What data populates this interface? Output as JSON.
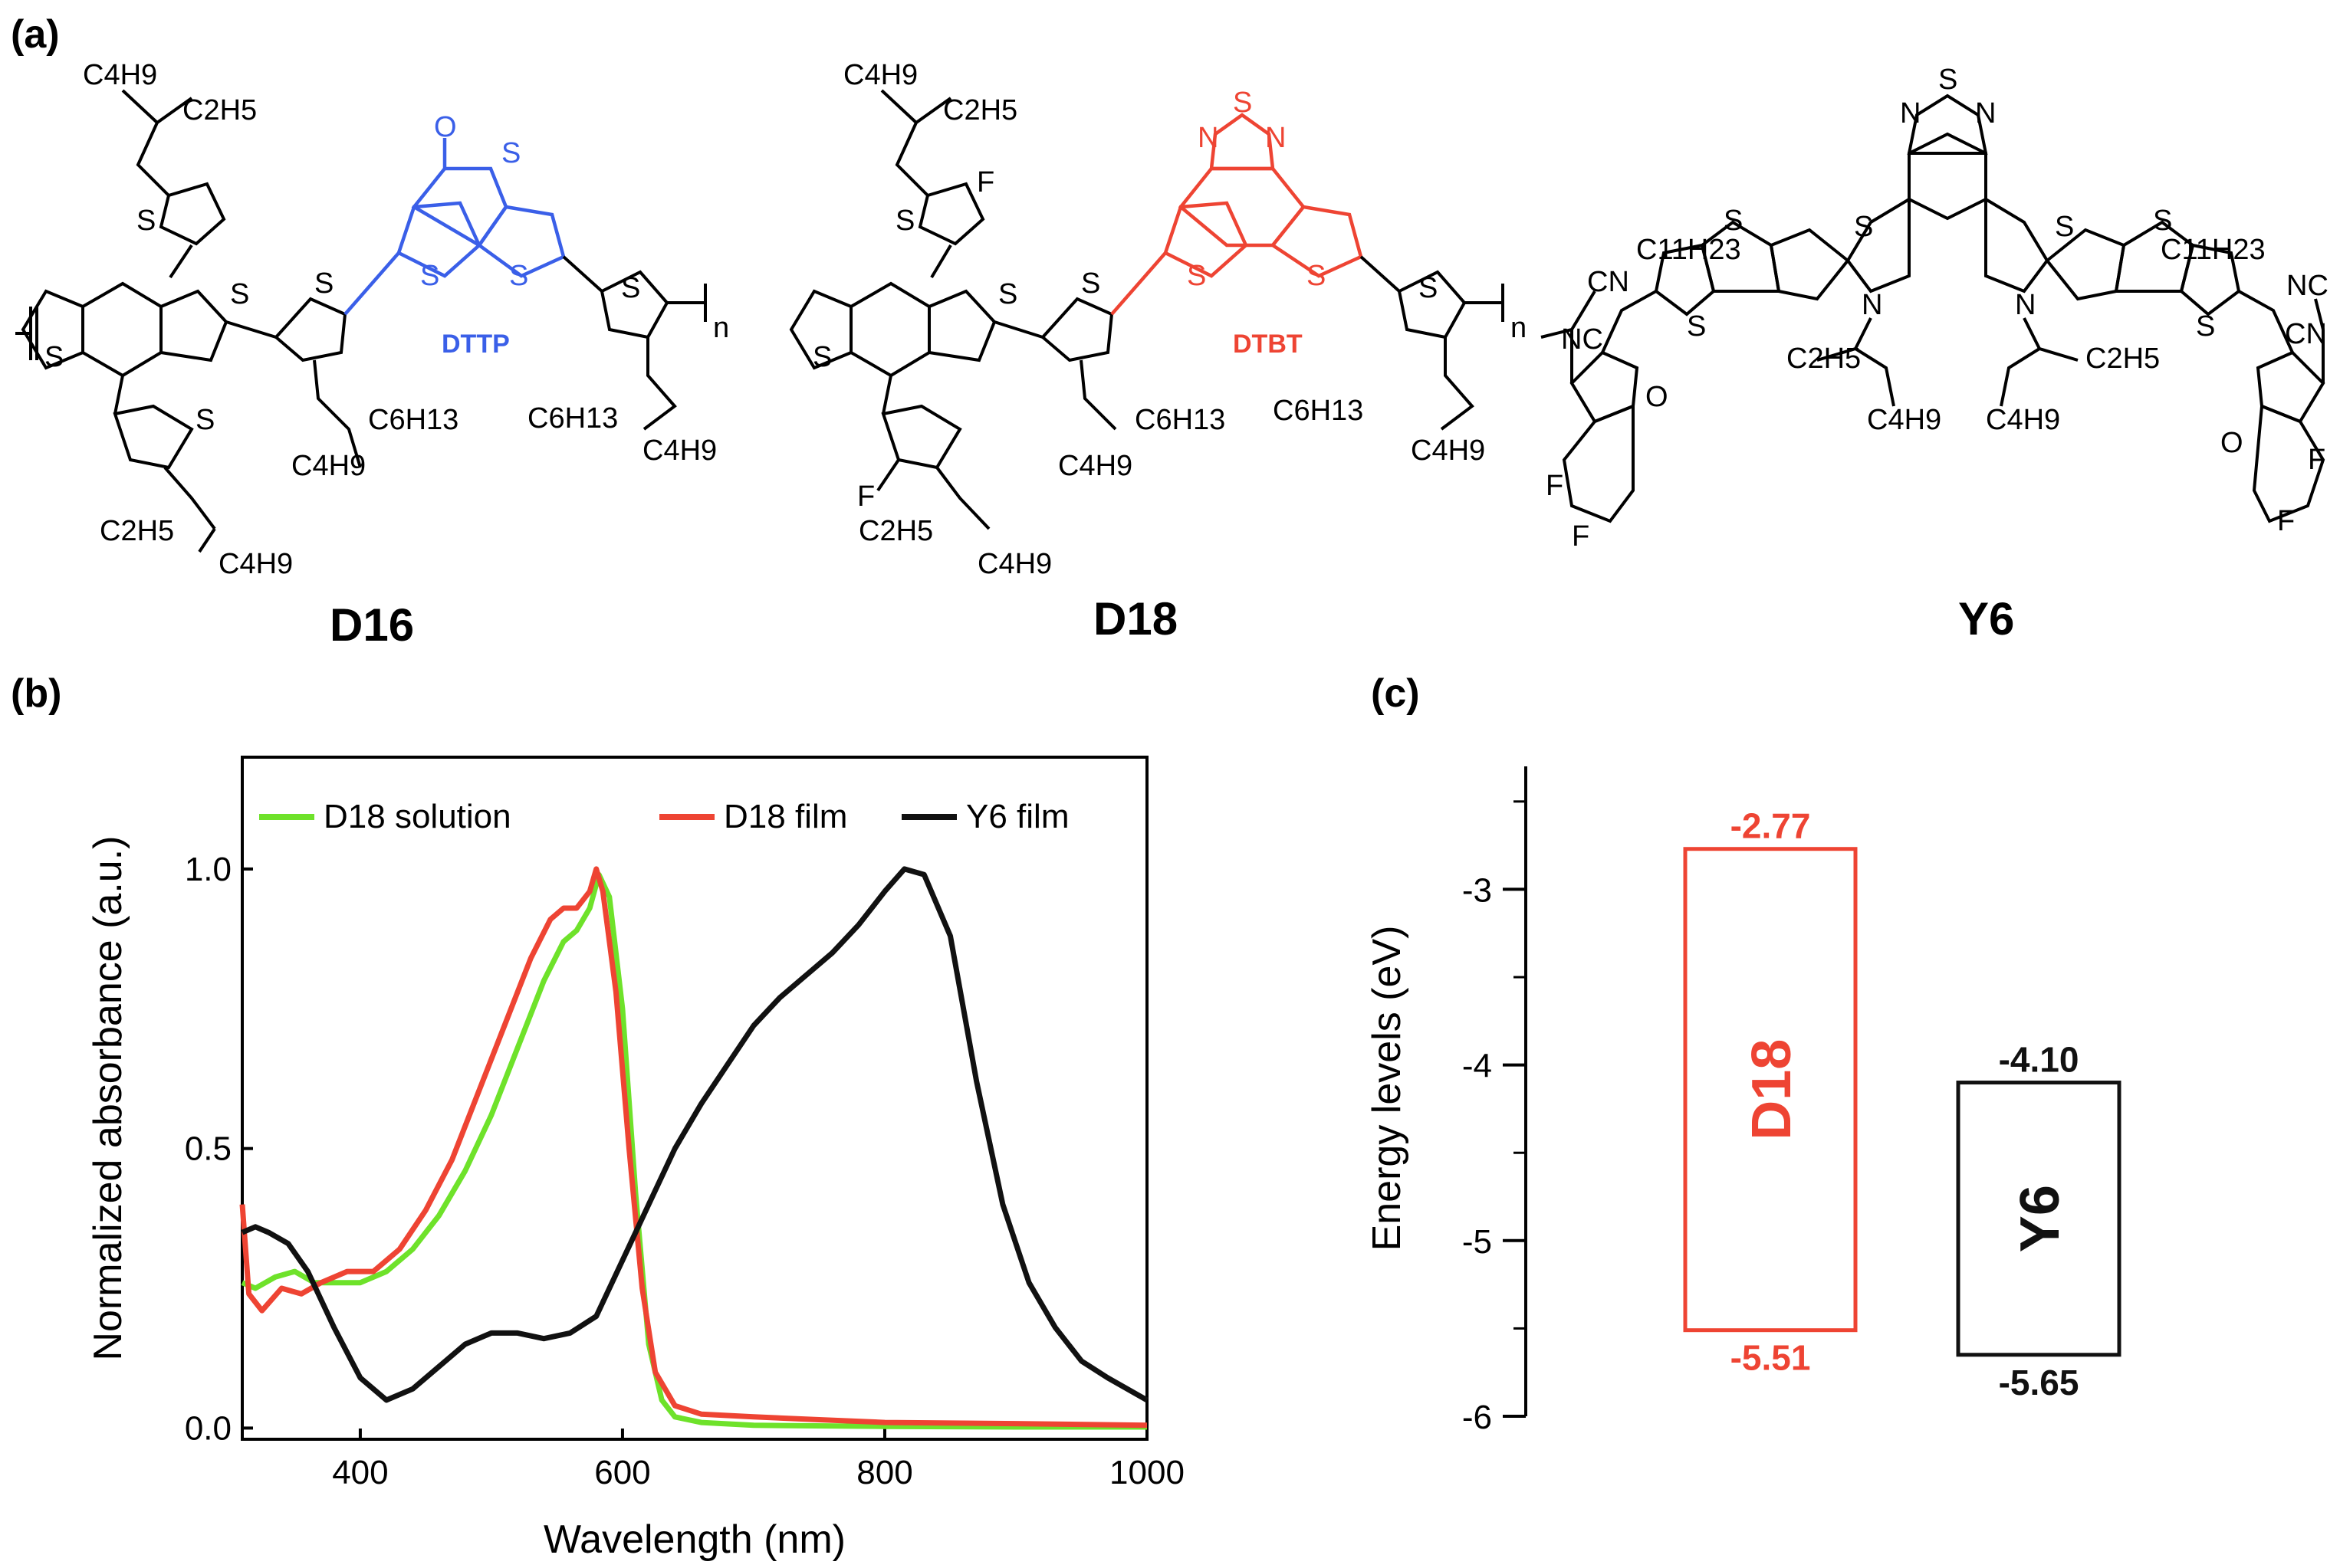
{
  "panels": {
    "a": "(a)",
    "b": "(b)",
    "c": "(c)"
  },
  "molecules": {
    "d16": {
      "name": "D16",
      "fragment": "DTTP",
      "fragment_color": "#3a5fe8",
      "atoms": [
        "C4H9",
        "C2H5",
        "S",
        "S",
        "S",
        "S",
        "S",
        "S",
        "O",
        "S",
        "S",
        "C6H13",
        "C4H9",
        "C6H13",
        "C4H9",
        "C2H5",
        "C4H9",
        "n"
      ]
    },
    "d18": {
      "name": "D18",
      "fragment": "DTBT",
      "fragment_color": "#ee4433",
      "atoms": [
        "C4H9",
        "C2H5",
        "F",
        "S",
        "S",
        "S",
        "N",
        "S",
        "N",
        "S",
        "S",
        "S",
        "S",
        "C6H13",
        "C4H9",
        "C6H13",
        "C4H9",
        "F",
        "C2H5",
        "C4H9",
        "n"
      ]
    },
    "y6": {
      "name": "Y6",
      "atoms": [
        "N",
        "S",
        "N",
        "C11H23",
        "C11H23",
        "CN",
        "NC",
        "NC",
        "CN",
        "S",
        "S",
        "S",
        "S",
        "S",
        "S",
        "N",
        "N",
        "C2H5",
        "C2H5",
        "C4H9",
        "C4H9",
        "O",
        "O",
        "F",
        "F",
        "F",
        "F"
      ]
    }
  },
  "chart_data": [
    {
      "type": "line",
      "panel": "(b)",
      "xlabel": "Wavelength (nm)",
      "ylabel": "Normalized absorbance (a.u.)",
      "xlim": [
        310,
        1000
      ],
      "ylim": [
        -0.02,
        1.2
      ],
      "xticks": [
        400,
        600,
        800,
        1000
      ],
      "xtick_labels": [
        "400",
        "600",
        "800",
        "1000"
      ],
      "yticks": [
        0.0,
        0.5,
        1.0
      ],
      "ytick_labels": [
        "0.0",
        "0.5",
        "1.0"
      ],
      "legend_position": "top",
      "series": [
        {
          "name": "D18 solution",
          "color": "#6ee22a",
          "x": [
            310,
            320,
            335,
            350,
            365,
            380,
            400,
            420,
            440,
            460,
            480,
            500,
            520,
            540,
            555,
            565,
            575,
            582,
            590,
            600,
            610,
            620,
            630,
            640,
            660,
            700,
            800,
            900,
            1000
          ],
          "y": [
            0.26,
            0.25,
            0.27,
            0.28,
            0.26,
            0.26,
            0.26,
            0.28,
            0.32,
            0.38,
            0.46,
            0.56,
            0.68,
            0.8,
            0.87,
            0.89,
            0.93,
            0.99,
            0.95,
            0.75,
            0.42,
            0.15,
            0.05,
            0.02,
            0.01,
            0.005,
            0.003,
            0.002,
            0.002
          ]
        },
        {
          "name": "D18 film",
          "color": "#ee4433",
          "x": [
            310,
            315,
            325,
            340,
            355,
            370,
            390,
            410,
            430,
            450,
            470,
            490,
            510,
            530,
            545,
            555,
            565,
            575,
            580,
            585,
            595,
            605,
            615,
            625,
            640,
            660,
            700,
            750,
            800,
            900,
            1000
          ],
          "y": [
            0.4,
            0.24,
            0.21,
            0.25,
            0.24,
            0.26,
            0.28,
            0.28,
            0.32,
            0.39,
            0.48,
            0.6,
            0.72,
            0.84,
            0.91,
            0.93,
            0.93,
            0.96,
            1.0,
            0.96,
            0.78,
            0.5,
            0.25,
            0.1,
            0.04,
            0.025,
            0.02,
            0.015,
            0.01,
            0.008,
            0.005
          ]
        },
        {
          "name": "Y6 film",
          "color": "#111111",
          "x": [
            310,
            320,
            330,
            345,
            360,
            380,
            400,
            420,
            440,
            460,
            480,
            500,
            520,
            540,
            560,
            580,
            600,
            620,
            640,
            660,
            680,
            700,
            720,
            740,
            760,
            780,
            800,
            815,
            830,
            850,
            870,
            890,
            910,
            930,
            950,
            970,
            1000
          ],
          "y": [
            0.35,
            0.36,
            0.35,
            0.33,
            0.28,
            0.18,
            0.09,
            0.05,
            0.07,
            0.11,
            0.15,
            0.17,
            0.17,
            0.16,
            0.17,
            0.2,
            0.3,
            0.4,
            0.5,
            0.58,
            0.65,
            0.72,
            0.77,
            0.81,
            0.85,
            0.9,
            0.96,
            1.0,
            0.99,
            0.88,
            0.62,
            0.4,
            0.26,
            0.18,
            0.12,
            0.09,
            0.05
          ]
        }
      ]
    },
    {
      "type": "energy-level diagram",
      "panel": "(c)",
      "ylabel": "Energy levels (eV)",
      "ylim": [
        -6.0,
        -2.3
      ],
      "yticks": [
        -3,
        -4,
        -5,
        -6
      ],
      "ytick_labels": [
        "-3",
        "-4",
        "-5",
        "-6"
      ],
      "levels": [
        {
          "name": "D18",
          "lumo": -2.77,
          "homo": -5.51,
          "lumo_label": "-2.77",
          "homo_label": "-5.51",
          "color": "#ee4433"
        },
        {
          "name": "Y6",
          "lumo": -4.1,
          "homo": -5.65,
          "lumo_label": "-4.10",
          "homo_label": "-5.65",
          "color": "#111111"
        }
      ]
    }
  ]
}
